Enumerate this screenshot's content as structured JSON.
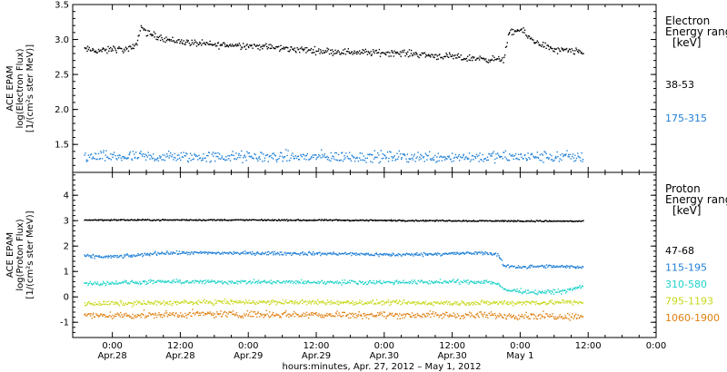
{
  "chart_data": [
    {
      "type": "scatter",
      "panel": "top",
      "ylabel_lines": [
        "ACE EPAM",
        "log(Electron Flux)",
        "[1/(cm²s ster MeV)]"
      ],
      "ylim": [
        1.1,
        3.5
      ],
      "yticks": [
        1.5,
        2.0,
        2.5,
        3.0,
        3.5
      ],
      "ytick_labels": [
        "1.5",
        "2.0",
        "2.5",
        "3.0",
        "3.5"
      ],
      "legend_title": [
        "Electron",
        "Energy ranges",
        "[keV]"
      ],
      "series": [
        {
          "name": "38-53",
          "color": "#000000",
          "x_hours": [
            -5,
            -3,
            -1,
            0,
            2,
            4,
            5,
            6,
            8,
            10,
            14,
            18,
            22,
            26,
            30,
            34,
            38,
            42,
            46,
            50,
            54,
            56,
            58,
            60,
            62,
            64,
            66,
            68,
            69,
            70,
            72,
            74,
            76,
            78,
            80,
            83
          ],
          "y": [
            2.87,
            2.85,
            2.85,
            2.88,
            2.86,
            2.9,
            3.2,
            3.1,
            3.05,
            3.0,
            2.96,
            2.93,
            2.93,
            2.91,
            2.88,
            2.86,
            2.84,
            2.83,
            2.82,
            2.82,
            2.8,
            2.78,
            2.77,
            2.76,
            2.74,
            2.74,
            2.73,
            2.72,
            2.73,
            3.1,
            3.15,
            3.0,
            2.93,
            2.85,
            2.85,
            2.82
          ],
          "noise": 0.035
        },
        {
          "name": "175-315",
          "color": "#1f7fd6",
          "x_hours": [
            -5,
            83
          ],
          "y": [
            1.33,
            1.33
          ],
          "noise": 0.06
        }
      ]
    },
    {
      "type": "scatter",
      "panel": "bottom",
      "ylabel_lines": [
        "ACE EPAM",
        "log(Proton Flux)",
        "[1/(cm²s ster MeV)]"
      ],
      "ylim": [
        -1.6,
        4.9
      ],
      "yticks": [
        -1,
        0,
        1,
        2,
        3,
        4
      ],
      "ytick_labels": [
        "-1",
        "0",
        "1",
        "2",
        "3",
        "4"
      ],
      "legend_title": [
        "Proton",
        "Energy ranges",
        "[keV]"
      ],
      "series": [
        {
          "name": "47-68",
          "color": "#000000",
          "x_hours": [
            -5,
            20,
            40,
            60,
            83
          ],
          "y": [
            3.05,
            3.05,
            3.04,
            3.02,
            3.0
          ],
          "noise": 0.02
        },
        {
          "name": "115-195",
          "color": "#1f7fd6",
          "x_hours": [
            -5,
            0,
            4,
            8,
            20,
            40,
            50,
            58,
            66,
            68,
            69,
            72,
            76,
            83
          ],
          "y": [
            1.62,
            1.6,
            1.65,
            1.75,
            1.75,
            1.72,
            1.68,
            1.72,
            1.75,
            1.68,
            1.25,
            1.2,
            1.22,
            1.2
          ],
          "noise": 0.05
        },
        {
          "name": "310-580",
          "color": "#1fd2c8",
          "x_hours": [
            -5,
            10,
            30,
            50,
            66,
            68,
            69,
            75,
            80,
            83
          ],
          "y": [
            0.55,
            0.62,
            0.6,
            0.6,
            0.62,
            0.55,
            0.3,
            0.2,
            0.25,
            0.45
          ],
          "noise": 0.06
        },
        {
          "name": "795-1193",
          "color": "#c8d81a",
          "x_hours": [
            -5,
            20,
            40,
            60,
            75,
            83
          ],
          "y": [
            -0.25,
            -0.18,
            -0.2,
            -0.22,
            -0.2,
            -0.18
          ],
          "noise": 0.07
        },
        {
          "name": "1060-1900",
          "color": "#e07f10",
          "x_hours": [
            -5,
            20,
            40,
            60,
            75,
            83
          ],
          "y": [
            -0.72,
            -0.65,
            -0.68,
            -0.7,
            -0.72,
            -0.75
          ],
          "noise": 0.1
        }
      ]
    }
  ],
  "x_axis": {
    "range_hours": [
      -7,
      96
    ],
    "major_ticks_hours": [
      0,
      12,
      24,
      36,
      48,
      60,
      72,
      84,
      96
    ],
    "tick_time_labels": [
      "0:00",
      "12:00",
      "0:00",
      "12:00",
      "0:00",
      "12:00",
      "0:00",
      "12:00",
      "0:00"
    ],
    "tick_date_labels": [
      "Apr.28",
      "Apr.28",
      "Apr.29",
      "Apr.29",
      "Apr.30",
      "Apr.30",
      "May 1",
      "",
      ""
    ],
    "title": "hours:minutes, Apr. 27, 2012 – May  1, 2012"
  },
  "colors": {
    "axis": "#000000",
    "background": "#ffffff"
  }
}
